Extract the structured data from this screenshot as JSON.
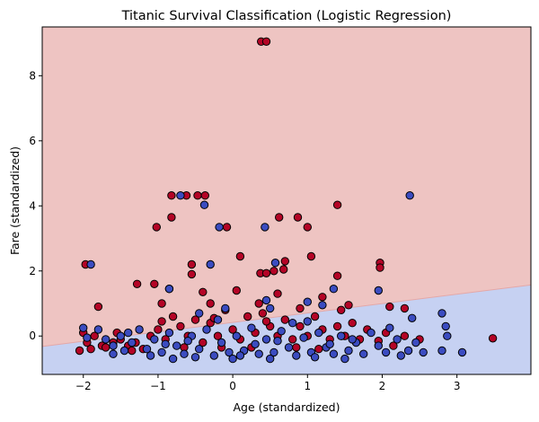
{
  "chart_data": {
    "type": "scatter",
    "title": "Titanic Survival Classification (Logistic Regression)",
    "xlabel": "Age (standardized)",
    "ylabel": "Fare (standardized)",
    "xlim": [
      -2.55,
      3.99
    ],
    "ylim": [
      -1.18,
      9.5
    ],
    "x_ticks": [
      -2,
      -1,
      0,
      1,
      2,
      3
    ],
    "y_ticks": [
      0,
      2,
      4,
      6,
      8
    ],
    "grid": false,
    "legend": "none",
    "decision_boundary": {
      "x": [
        -2.55,
        3.99
      ],
      "y": [
        -0.32,
        1.57
      ],
      "region_above_color": "#eec4c2",
      "region_below_color": "#c6d1f2"
    },
    "series": [
      {
        "color": "#b40426",
        "points": [
          [
            0.38,
            9.05
          ],
          [
            0.45,
            9.05
          ],
          [
            -0.82,
            4.32
          ],
          [
            -0.62,
            4.32
          ],
          [
            -0.47,
            4.32
          ],
          [
            -0.37,
            4.32
          ],
          [
            -0.82,
            3.65
          ],
          [
            -0.08,
            3.35
          ],
          [
            0.87,
            3.65
          ],
          [
            1.0,
            3.35
          ],
          [
            1.4,
            4.03
          ],
          [
            -1.02,
            3.35
          ],
          [
            0.62,
            3.65
          ],
          [
            0.7,
            2.3
          ],
          [
            0.68,
            2.05
          ],
          [
            0.55,
            2.0
          ],
          [
            0.37,
            1.93
          ],
          [
            0.45,
            1.93
          ],
          [
            1.05,
            2.45
          ],
          [
            0.1,
            2.45
          ],
          [
            1.4,
            1.85
          ],
          [
            1.97,
            2.25
          ],
          [
            1.97,
            2.1
          ],
          [
            -0.55,
            2.2
          ],
          [
            -1.05,
            1.6
          ],
          [
            -1.28,
            1.6
          ],
          [
            -0.55,
            1.9
          ],
          [
            -0.85,
            1.45
          ],
          [
            0.05,
            1.4
          ],
          [
            -0.4,
            1.35
          ],
          [
            0.6,
            1.3
          ],
          [
            -1.97,
            2.2
          ],
          [
            -1.8,
            0.9
          ],
          [
            -0.3,
            1.0
          ],
          [
            1.2,
            1.2
          ],
          [
            1.55,
            0.95
          ],
          [
            2.1,
            0.9
          ],
          [
            2.3,
            0.85
          ],
          [
            -0.95,
            1.0
          ],
          [
            0.35,
            1.0
          ],
          [
            0.9,
            0.85
          ],
          [
            1.45,
            0.8
          ],
          [
            -2.0,
            0.1
          ],
          [
            -1.95,
            -0.2
          ],
          [
            -1.9,
            -0.4
          ],
          [
            -1.85,
            0.0
          ],
          [
            -1.75,
            -0.3
          ],
          [
            -1.6,
            -0.2
          ],
          [
            -1.5,
            -0.1
          ],
          [
            -1.4,
            -0.3
          ],
          [
            -1.3,
            -0.2
          ],
          [
            -1.2,
            -0.4
          ],
          [
            -1.1,
            0.0
          ],
          [
            -1.0,
            0.2
          ],
          [
            -0.9,
            -0.1
          ],
          [
            -0.8,
            0.6
          ],
          [
            -0.7,
            0.3
          ],
          [
            -0.6,
            0.0
          ],
          [
            -0.5,
            0.5
          ],
          [
            -0.4,
            -0.2
          ],
          [
            -0.3,
            0.4
          ],
          [
            -0.2,
            0.0
          ],
          [
            -0.1,
            0.8
          ],
          [
            0.0,
            0.2
          ],
          [
            0.1,
            -0.1
          ],
          [
            0.2,
            0.6
          ],
          [
            0.3,
            0.1
          ],
          [
            0.4,
            0.7
          ],
          [
            0.5,
            0.3
          ],
          [
            0.6,
            0.0
          ],
          [
            0.7,
            0.5
          ],
          [
            0.8,
            -0.1
          ],
          [
            0.9,
            0.3
          ],
          [
            1.0,
            0.0
          ],
          [
            1.1,
            0.6
          ],
          [
            1.2,
            0.2
          ],
          [
            1.3,
            -0.1
          ],
          [
            1.4,
            0.3
          ],
          [
            1.5,
            0.0
          ],
          [
            1.6,
            0.4
          ],
          [
            1.7,
            -0.1
          ],
          [
            1.8,
            0.2
          ],
          [
            1.95,
            -0.15
          ],
          [
            2.05,
            0.1
          ],
          [
            2.15,
            -0.3
          ],
          [
            2.3,
            0.0
          ],
          [
            2.5,
            -0.1
          ],
          [
            3.48,
            -0.07
          ],
          [
            -1.55,
            0.1
          ],
          [
            -0.95,
            0.45
          ],
          [
            -0.25,
            0.55
          ],
          [
            0.45,
            0.45
          ],
          [
            -0.15,
            -0.35
          ],
          [
            -0.65,
            -0.35
          ],
          [
            0.25,
            -0.35
          ],
          [
            0.85,
            -0.35
          ],
          [
            -1.35,
            -0.45
          ],
          [
            1.15,
            -0.4
          ],
          [
            -2.05,
            -0.45
          ],
          [
            -1.7,
            -0.35
          ]
        ]
      },
      {
        "color": "#3b4cc0",
        "points": [
          [
            -0.7,
            4.32
          ],
          [
            -0.38,
            4.03
          ],
          [
            2.37,
            4.32
          ],
          [
            -0.18,
            3.35
          ],
          [
            0.43,
            3.35
          ],
          [
            -1.9,
            2.2
          ],
          [
            -0.3,
            2.2
          ],
          [
            0.57,
            2.25
          ],
          [
            -0.85,
            1.45
          ],
          [
            1.35,
            1.45
          ],
          [
            1.95,
            1.4
          ],
          [
            0.45,
            1.1
          ],
          [
            1.0,
            1.05
          ],
          [
            1.2,
            0.95
          ],
          [
            0.5,
            0.85
          ],
          [
            -0.1,
            0.85
          ],
          [
            -0.45,
            0.7
          ],
          [
            2.8,
            0.7
          ],
          [
            2.4,
            0.55
          ],
          [
            -2.0,
            0.25
          ],
          [
            -1.8,
            0.2
          ],
          [
            -1.7,
            -0.1
          ],
          [
            -1.6,
            -0.3
          ],
          [
            -1.5,
            0.0
          ],
          [
            -1.45,
            -0.45
          ],
          [
            -1.35,
            -0.2
          ],
          [
            -1.25,
            0.2
          ],
          [
            -1.15,
            -0.4
          ],
          [
            -1.05,
            -0.1
          ],
          [
            -0.95,
            -0.5
          ],
          [
            -0.85,
            0.1
          ],
          [
            -0.75,
            -0.3
          ],
          [
            -0.65,
            -0.55
          ],
          [
            -0.55,
            0.0
          ],
          [
            -0.45,
            -0.4
          ],
          [
            -0.35,
            0.2
          ],
          [
            -0.25,
            -0.6
          ],
          [
            -0.15,
            -0.2
          ],
          [
            -0.05,
            -0.5
          ],
          [
            0.05,
            0.0
          ],
          [
            0.15,
            -0.45
          ],
          [
            0.25,
            0.25
          ],
          [
            0.35,
            -0.55
          ],
          [
            0.45,
            -0.1
          ],
          [
            0.55,
            -0.5
          ],
          [
            0.65,
            0.15
          ],
          [
            0.75,
            -0.35
          ],
          [
            0.85,
            -0.6
          ],
          [
            0.95,
            -0.05
          ],
          [
            1.05,
            -0.5
          ],
          [
            1.15,
            0.1
          ],
          [
            1.25,
            -0.35
          ],
          [
            1.35,
            -0.55
          ],
          [
            1.45,
            0.0
          ],
          [
            1.55,
            -0.45
          ],
          [
            1.65,
            -0.2
          ],
          [
            1.75,
            -0.55
          ],
          [
            1.85,
            0.1
          ],
          [
            1.95,
            -0.3
          ],
          [
            2.05,
            -0.5
          ],
          [
            2.2,
            -0.1
          ],
          [
            2.35,
            -0.45
          ],
          [
            2.45,
            -0.2
          ],
          [
            2.55,
            -0.5
          ],
          [
            2.8,
            -0.45
          ],
          [
            2.85,
            0.3
          ],
          [
            2.87,
            0.0
          ],
          [
            3.07,
            -0.5
          ],
          [
            -1.95,
            -0.05
          ],
          [
            -1.1,
            -0.6
          ],
          [
            -0.6,
            -0.15
          ],
          [
            0.1,
            -0.6
          ],
          [
            0.6,
            -0.15
          ],
          [
            1.1,
            -0.65
          ],
          [
            1.6,
            -0.1
          ],
          [
            -1.4,
            0.1
          ],
          [
            -0.2,
            0.5
          ],
          [
            0.8,
            0.4
          ],
          [
            -0.9,
            -0.25
          ],
          [
            0.3,
            -0.25
          ],
          [
            1.3,
            -0.25
          ],
          [
            2.1,
            0.25
          ],
          [
            -0.5,
            -0.65
          ],
          [
            0.5,
            -0.7
          ],
          [
            1.5,
            -0.7
          ],
          [
            -1.6,
            -0.55
          ],
          [
            2.25,
            -0.6
          ],
          [
            0.0,
            -0.7
          ],
          [
            -0.8,
            -0.7
          ],
          [
            1.0,
            0.45
          ]
        ]
      }
    ]
  }
}
